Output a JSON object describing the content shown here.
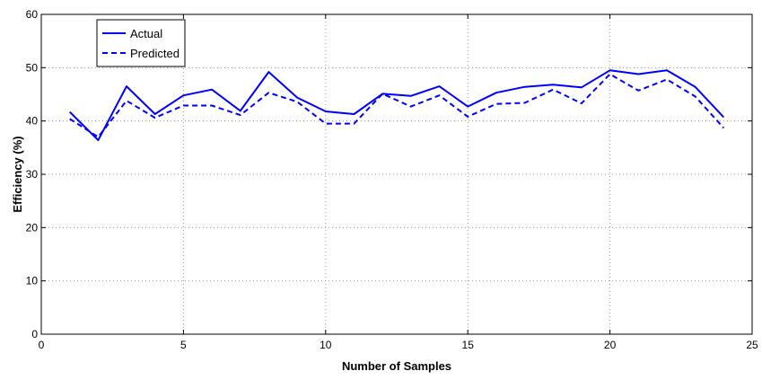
{
  "chart_data": {
    "type": "line",
    "title": "",
    "xlabel": "Number of Samples",
    "ylabel": "Efficiency (%)",
    "xlim": [
      0,
      25
    ],
    "ylim": [
      0,
      60
    ],
    "xticks": [
      0,
      5,
      10,
      15,
      20,
      25
    ],
    "yticks": [
      0,
      10,
      20,
      30,
      40,
      50,
      60
    ],
    "grid": true,
    "legend_position": "top-left",
    "x": [
      1,
      2,
      3,
      4,
      5,
      6,
      7,
      8,
      9,
      10,
      11,
      12,
      13,
      14,
      15,
      16,
      17,
      18,
      19,
      20,
      21,
      22,
      23,
      24
    ],
    "series": [
      {
        "name": "Actual",
        "color": "#0000ff",
        "style": "solid",
        "values": [
          41.7,
          36.4,
          46.5,
          41.3,
          44.8,
          45.9,
          41.9,
          49.2,
          44.4,
          41.8,
          41.3,
          45.1,
          44.7,
          46.5,
          42.7,
          45.3,
          46.4,
          46.8,
          46.3,
          49.5,
          48.8,
          49.5,
          46.4,
          40.7
        ]
      },
      {
        "name": "Predicted",
        "color": "#0000ff",
        "style": "dashed",
        "values": [
          40.4,
          37.0,
          43.8,
          40.6,
          42.9,
          42.9,
          41.1,
          45.3,
          43.6,
          39.5,
          39.5,
          45.1,
          42.7,
          44.8,
          40.8,
          43.2,
          43.4,
          45.9,
          43.3,
          48.8,
          45.7,
          47.8,
          44.6,
          38.7
        ]
      }
    ]
  }
}
